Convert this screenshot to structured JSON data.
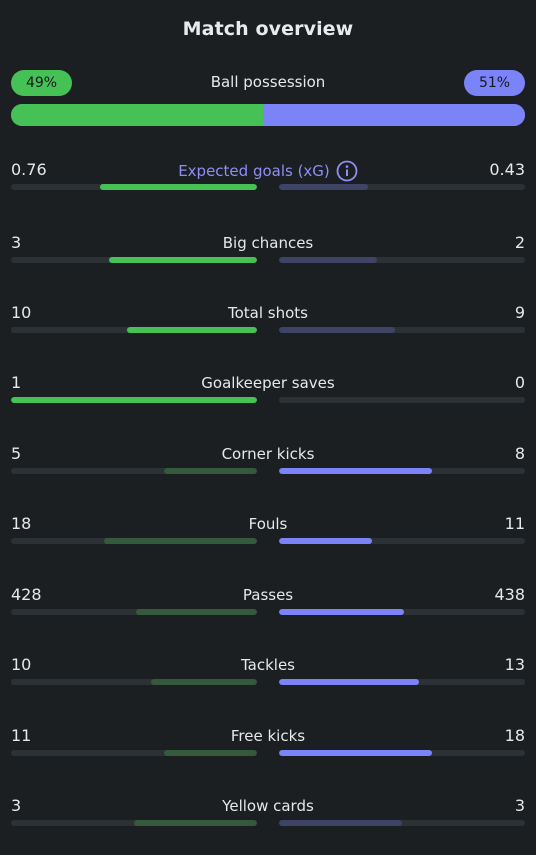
{
  "title": "Match overview",
  "colors": {
    "home": "#45c155",
    "home_dim": "#345a3b",
    "away": "#7b83f9",
    "away_dim": "#3d4466",
    "track": "#2c3135",
    "background": "#1b1f22"
  },
  "possession": {
    "label": "Ball possession",
    "home": "49%",
    "away": "51%",
    "home_fraction": 0.49
  },
  "stats": [
    {
      "label": "Expected goals (xG)",
      "home": "0.76",
      "away": "0.43",
      "home_fill": 0.64,
      "away_fill": 0.36,
      "leader": "home",
      "info_icon": true
    },
    {
      "label": "Big chances",
      "home": "3",
      "away": "2",
      "home_fill": 0.6,
      "away_fill": 0.4,
      "leader": "home"
    },
    {
      "label": "Total shots",
      "home": "10",
      "away": "9",
      "home_fill": 0.53,
      "away_fill": 0.47,
      "leader": "home"
    },
    {
      "label": "Goalkeeper saves",
      "home": "1",
      "away": "0",
      "home_fill": 1.0,
      "away_fill": 0.0,
      "leader": "home"
    },
    {
      "label": "Corner kicks",
      "home": "5",
      "away": "8",
      "home_fill": 0.38,
      "away_fill": 0.62,
      "leader": "away"
    },
    {
      "label": "Fouls",
      "home": "18",
      "away": "11",
      "home_fill": 0.62,
      "away_fill": 0.38,
      "leader": "away"
    },
    {
      "label": "Passes",
      "home": "428",
      "away": "438",
      "home_fill": 0.49,
      "away_fill": 0.51,
      "leader": "away"
    },
    {
      "label": "Tackles",
      "home": "10",
      "away": "13",
      "home_fill": 0.43,
      "away_fill": 0.57,
      "leader": "away"
    },
    {
      "label": "Free kicks",
      "home": "11",
      "away": "18",
      "home_fill": 0.38,
      "away_fill": 0.62,
      "leader": "away"
    },
    {
      "label": "Yellow cards",
      "home": "3",
      "away": "3",
      "home_fill": 0.5,
      "away_fill": 0.5,
      "leader": "none"
    }
  ]
}
